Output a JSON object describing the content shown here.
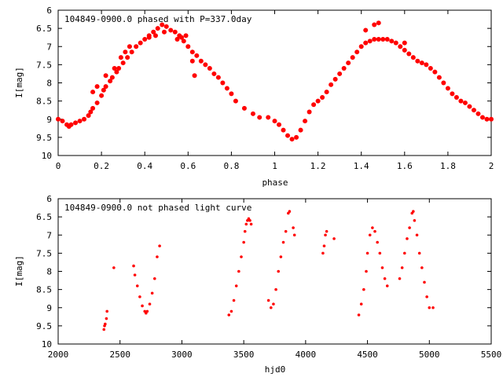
{
  "chart_data": [
    {
      "type": "scatter",
      "title": "104849-0900.0 phased with P=337.0day",
      "xlabel": "phase",
      "ylabel": "I[mag]",
      "xlim": [
        0,
        2
      ],
      "ylim": [
        6,
        10
      ],
      "y_inverted": true,
      "grid": false,
      "x_ticks": [
        0,
        0.2,
        0.4,
        0.6,
        0.8,
        1,
        1.2,
        1.4,
        1.6,
        1.8,
        2
      ],
      "x_tick_labels": [
        "0",
        "0.2",
        "0.4",
        "0.6",
        "0.8",
        "1",
        "1.2",
        "1.4",
        "1.6",
        "1.8",
        "2"
      ],
      "y_ticks": [
        6,
        6.5,
        7,
        7.5,
        8,
        8.5,
        9,
        9.5,
        10
      ],
      "y_tick_labels": [
        "6",
        "6.5",
        "7",
        "7.5",
        "8",
        "8.5",
        "9",
        "9.5",
        "10"
      ],
      "point_color": "#ff0000",
      "points": [
        [
          0.0,
          9.0
        ],
        [
          0.02,
          9.05
        ],
        [
          0.04,
          9.15
        ],
        [
          0.05,
          9.2
        ],
        [
          0.06,
          9.15
        ],
        [
          0.08,
          9.1
        ],
        [
          0.1,
          9.05
        ],
        [
          0.12,
          9.0
        ],
        [
          0.14,
          8.9
        ],
        [
          0.15,
          8.8
        ],
        [
          0.16,
          8.7
        ],
        [
          0.18,
          8.55
        ],
        [
          0.2,
          8.35
        ],
        [
          0.21,
          8.2
        ],
        [
          0.22,
          8.1
        ],
        [
          0.24,
          7.95
        ],
        [
          0.25,
          7.85
        ],
        [
          0.27,
          7.7
        ],
        [
          0.28,
          7.6
        ],
        [
          0.3,
          7.45
        ],
        [
          0.32,
          7.3
        ],
        [
          0.34,
          7.15
        ],
        [
          0.36,
          7.0
        ],
        [
          0.38,
          6.9
        ],
        [
          0.4,
          6.8
        ],
        [
          0.42,
          6.7
        ],
        [
          0.44,
          6.6
        ],
        [
          0.46,
          6.5
        ],
        [
          0.48,
          6.4
        ],
        [
          0.5,
          6.45
        ],
        [
          0.52,
          6.55
        ],
        [
          0.54,
          6.6
        ],
        [
          0.56,
          6.7
        ],
        [
          0.58,
          6.85
        ],
        [
          0.6,
          7.0
        ],
        [
          0.62,
          7.15
        ],
        [
          0.64,
          7.25
        ],
        [
          0.66,
          7.4
        ],
        [
          0.68,
          7.5
        ],
        [
          0.7,
          7.6
        ],
        [
          0.72,
          7.75
        ],
        [
          0.74,
          7.85
        ],
        [
          0.76,
          8.0
        ],
        [
          0.78,
          8.15
        ],
        [
          0.8,
          8.3
        ],
        [
          0.82,
          8.5
        ],
        [
          0.86,
          8.7
        ],
        [
          0.9,
          8.85
        ],
        [
          0.93,
          8.95
        ],
        [
          0.97,
          8.95
        ],
        [
          1.0,
          9.05
        ],
        [
          1.02,
          9.15
        ],
        [
          1.04,
          9.3
        ],
        [
          1.06,
          9.45
        ],
        [
          1.08,
          9.55
        ],
        [
          1.1,
          9.5
        ],
        [
          1.12,
          9.3
        ],
        [
          1.14,
          9.05
        ],
        [
          1.16,
          8.8
        ],
        [
          1.18,
          8.6
        ],
        [
          1.2,
          8.5
        ],
        [
          1.22,
          8.4
        ],
        [
          1.24,
          8.25
        ],
        [
          1.26,
          8.05
        ],
        [
          1.28,
          7.9
        ],
        [
          1.3,
          7.75
        ],
        [
          1.32,
          7.6
        ],
        [
          1.34,
          7.45
        ],
        [
          1.36,
          7.3
        ],
        [
          1.38,
          7.15
        ],
        [
          1.4,
          7.0
        ],
        [
          1.42,
          6.9
        ],
        [
          1.44,
          6.85
        ],
        [
          1.46,
          6.8
        ],
        [
          1.48,
          6.8
        ],
        [
          1.5,
          6.8
        ],
        [
          1.52,
          6.8
        ],
        [
          1.54,
          6.85
        ],
        [
          1.56,
          6.9
        ],
        [
          1.58,
          7.0
        ],
        [
          1.6,
          7.1
        ],
        [
          1.62,
          7.2
        ],
        [
          1.64,
          7.3
        ],
        [
          1.66,
          7.4
        ],
        [
          1.68,
          7.45
        ],
        [
          1.7,
          7.5
        ],
        [
          1.72,
          7.6
        ],
        [
          1.74,
          7.7
        ],
        [
          1.76,
          7.85
        ],
        [
          1.78,
          8.0
        ],
        [
          1.8,
          8.15
        ],
        [
          1.82,
          8.3
        ],
        [
          1.84,
          8.4
        ],
        [
          1.86,
          8.5
        ],
        [
          1.88,
          8.55
        ],
        [
          1.9,
          8.65
        ],
        [
          1.92,
          8.75
        ],
        [
          1.94,
          8.85
        ],
        [
          1.96,
          8.95
        ],
        [
          1.98,
          9.0
        ],
        [
          2.0,
          9.0
        ],
        [
          0.16,
          8.25
        ],
        [
          0.18,
          8.1
        ],
        [
          0.22,
          7.8
        ],
        [
          0.26,
          7.6
        ],
        [
          0.29,
          7.3
        ],
        [
          0.31,
          7.15
        ],
        [
          0.33,
          7.0
        ],
        [
          0.42,
          6.75
        ],
        [
          0.45,
          6.7
        ],
        [
          0.49,
          6.6
        ],
        [
          0.55,
          6.8
        ],
        [
          0.57,
          6.75
        ],
        [
          0.59,
          6.7
        ],
        [
          0.62,
          7.4
        ],
        [
          0.63,
          7.8
        ],
        [
          1.46,
          6.4
        ],
        [
          1.48,
          6.35
        ],
        [
          1.42,
          6.55
        ],
        [
          1.6,
          6.9
        ]
      ]
    },
    {
      "type": "scatter",
      "title": "104849-0900.0 not phased light curve",
      "xlabel": "hjd0",
      "ylabel": "I[mag]",
      "xlim": [
        2000,
        5500
      ],
      "ylim": [
        6,
        10
      ],
      "y_inverted": true,
      "grid": false,
      "x_ticks": [
        2000,
        2500,
        3000,
        3500,
        4000,
        4500,
        5000,
        5500
      ],
      "x_tick_labels": [
        "2000",
        "2500",
        "3000",
        "3500",
        "4000",
        "4500",
        "5000",
        "5500"
      ],
      "y_ticks": [
        6,
        6.5,
        7,
        7.5,
        8,
        8.5,
        9,
        9.5,
        10
      ],
      "y_tick_labels": [
        "6",
        "6.5",
        "7",
        "7.5",
        "8",
        "8.5",
        "9",
        "9.5",
        "10"
      ],
      "point_color": "#ff0000",
      "points": [
        [
          2370,
          9.6
        ],
        [
          2375,
          9.5
        ],
        [
          2380,
          9.45
        ],
        [
          2390,
          9.3
        ],
        [
          2395,
          9.1
        ],
        [
          2450,
          7.9
        ],
        [
          2610,
          7.85
        ],
        [
          2620,
          8.1
        ],
        [
          2640,
          8.4
        ],
        [
          2660,
          8.7
        ],
        [
          2680,
          8.95
        ],
        [
          2700,
          9.1
        ],
        [
          2710,
          9.15
        ],
        [
          2720,
          9.1
        ],
        [
          2740,
          8.9
        ],
        [
          2760,
          8.6
        ],
        [
          2780,
          8.2
        ],
        [
          2800,
          7.6
        ],
        [
          2820,
          7.3
        ],
        [
          3380,
          9.2
        ],
        [
          3400,
          9.1
        ],
        [
          3420,
          8.8
        ],
        [
          3440,
          8.4
        ],
        [
          3460,
          8.0
        ],
        [
          3480,
          7.6
        ],
        [
          3500,
          7.2
        ],
        [
          3510,
          6.9
        ],
        [
          3520,
          6.7
        ],
        [
          3530,
          6.6
        ],
        [
          3540,
          6.55
        ],
        [
          3550,
          6.6
        ],
        [
          3560,
          6.7
        ],
        [
          3700,
          8.8
        ],
        [
          3720,
          9.0
        ],
        [
          3740,
          8.9
        ],
        [
          3760,
          8.5
        ],
        [
          3780,
          8.0
        ],
        [
          3800,
          7.6
        ],
        [
          3820,
          7.2
        ],
        [
          3840,
          6.9
        ],
        [
          3860,
          6.4
        ],
        [
          3870,
          6.35
        ],
        [
          3900,
          6.8
        ],
        [
          3910,
          7.0
        ],
        [
          4140,
          7.5
        ],
        [
          4150,
          7.3
        ],
        [
          4160,
          7.0
        ],
        [
          4170,
          6.9
        ],
        [
          4230,
          7.1
        ],
        [
          4430,
          9.2
        ],
        [
          4450,
          8.9
        ],
        [
          4470,
          8.5
        ],
        [
          4490,
          8.0
        ],
        [
          4500,
          7.5
        ],
        [
          4520,
          7.0
        ],
        [
          4540,
          6.8
        ],
        [
          4560,
          6.9
        ],
        [
          4580,
          7.2
        ],
        [
          4600,
          7.5
        ],
        [
          4620,
          7.9
        ],
        [
          4640,
          8.2
        ],
        [
          4660,
          8.4
        ],
        [
          4760,
          8.2
        ],
        [
          4780,
          7.9
        ],
        [
          4800,
          7.5
        ],
        [
          4820,
          7.1
        ],
        [
          4840,
          6.8
        ],
        [
          4860,
          6.4
        ],
        [
          4870,
          6.35
        ],
        [
          4880,
          6.6
        ],
        [
          4900,
          7.0
        ],
        [
          4920,
          7.5
        ],
        [
          4940,
          7.9
        ],
        [
          4960,
          8.3
        ],
        [
          4980,
          8.7
        ],
        [
          5000,
          9.0
        ],
        [
          5030,
          9.0
        ]
      ]
    }
  ]
}
